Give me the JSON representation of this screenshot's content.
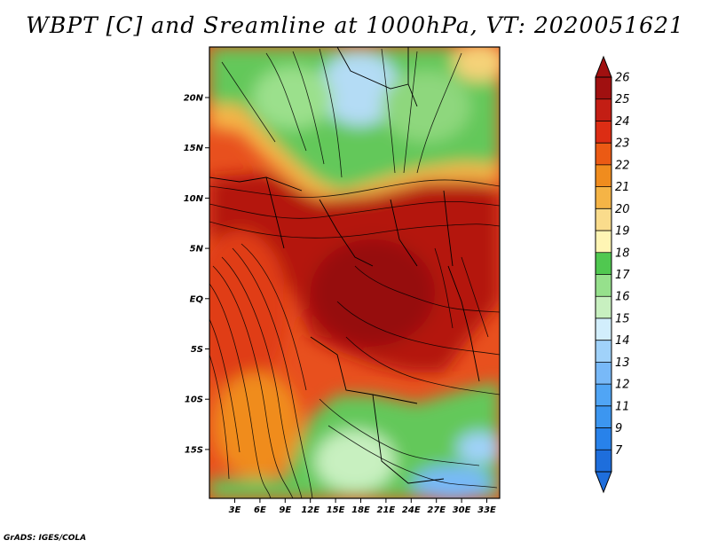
{
  "title": "WBPT [C] and Sreamline at 1000hPa, VT: 2020051621",
  "credit": "GrADS: IGES/COLA",
  "lat_ticks": [
    "20N",
    "15N",
    "10N",
    "5N",
    "EQ",
    "5S",
    "10S",
    "15S"
  ],
  "lon_ticks": [
    "3E",
    "6E",
    "9E",
    "12E",
    "15E",
    "18E",
    "21E",
    "24E",
    "27E",
    "30E",
    "33E"
  ],
  "colorbar": {
    "labels": [
      "7",
      "9",
      "11",
      "12",
      "13",
      "14",
      "15",
      "16",
      "17",
      "18",
      "19",
      "20",
      "21",
      "22",
      "23",
      "24",
      "25",
      "26"
    ],
    "colors": [
      "#1e6edc",
      "#2882ea",
      "#3c96f0",
      "#50a5f5",
      "#78b9f8",
      "#a0d2fa",
      "#d2eefc",
      "#c8f0c0",
      "#96e08c",
      "#50c850",
      "#fff5b4",
      "#fadc8c",
      "#f5b446",
      "#f08c1e",
      "#eb5a14",
      "#dc2d14",
      "#c31e14",
      "#a01010"
    ]
  }
}
